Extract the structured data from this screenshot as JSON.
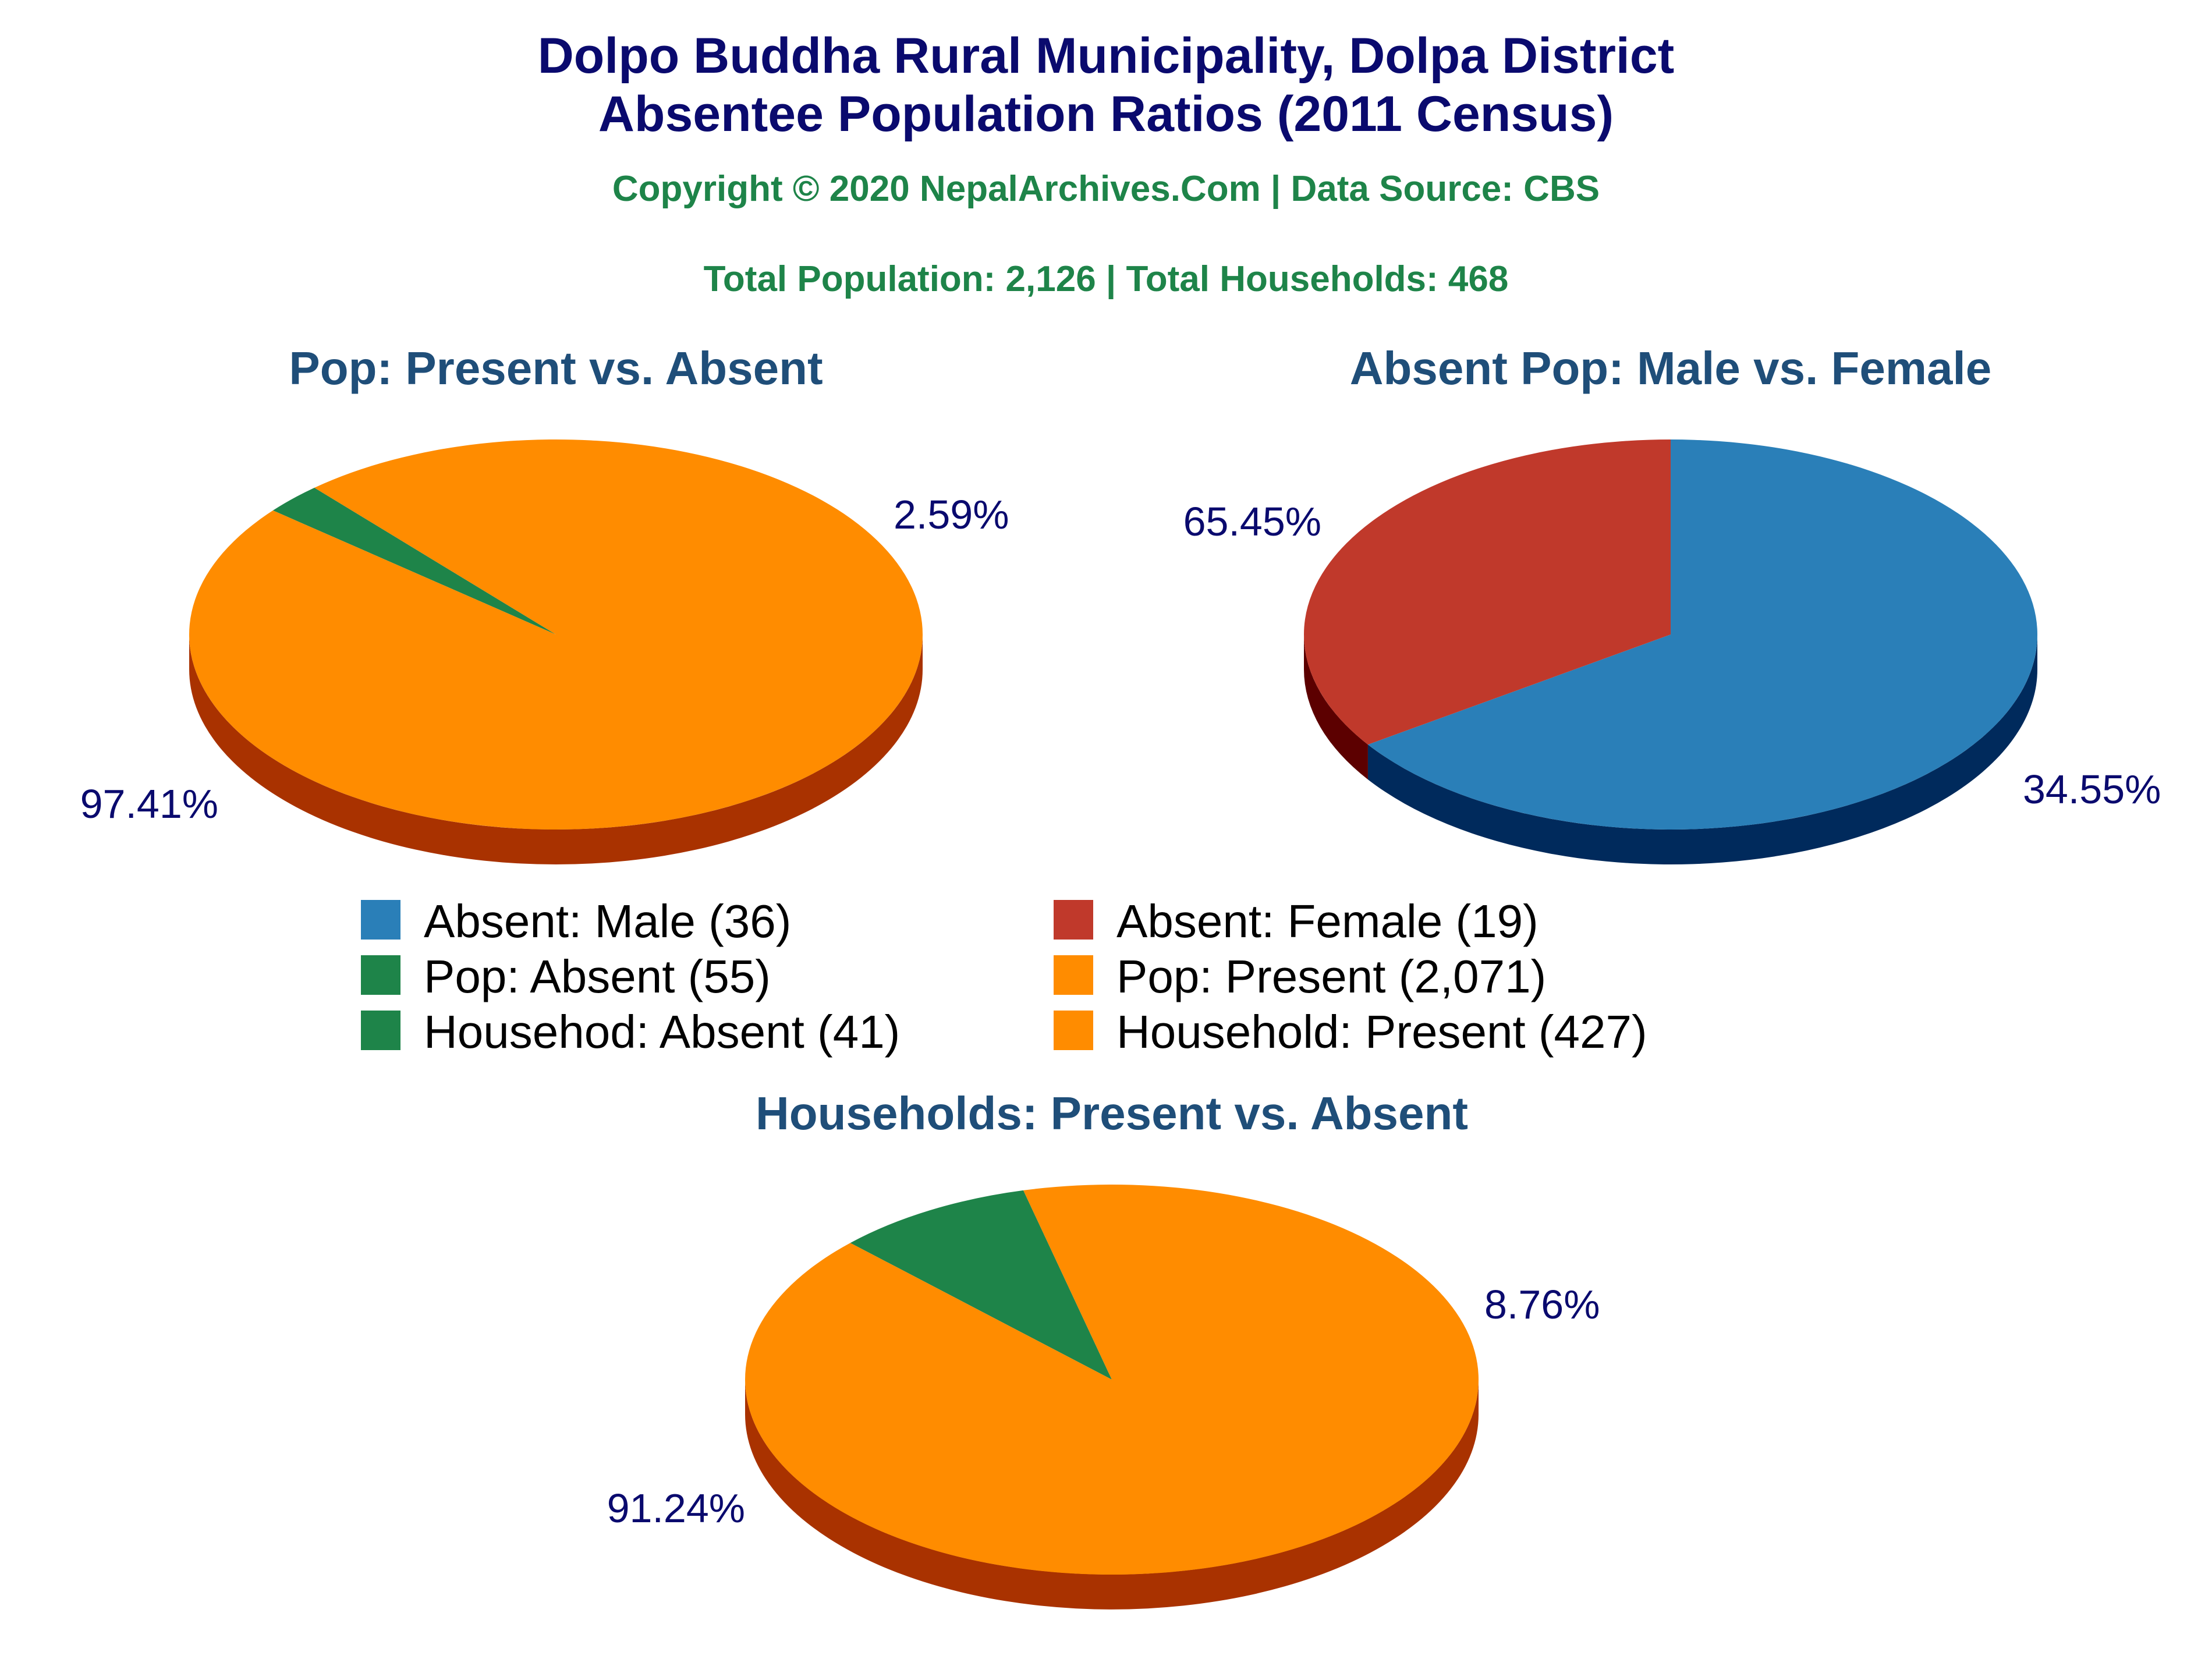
{
  "header": {
    "title_line1": "Dolpo Buddha Rural Municipality, Dolpa District",
    "title_line2": "Absentee Population Ratios (2011 Census)",
    "copyright": "Copyright © 2020 NepalArchives.Com | Data Source: CBS",
    "totals": "Total Population: 2,126 | Total Households: 468"
  },
  "chart_data": [
    {
      "type": "pie",
      "title": "Pop: Present vs. Absent",
      "slices": [
        {
          "label": "Pop: Absent",
          "value": 55,
          "percent_label": "2.59%",
          "color": "#1e8449",
          "side_color": "#145a32"
        },
        {
          "label": "Pop: Present",
          "value": 2071,
          "percent_label": "97.41%",
          "color": "#ff8c00",
          "side_color": "#a93200"
        }
      ]
    },
    {
      "type": "pie",
      "title": "Absent Pop: Male vs. Female",
      "slices": [
        {
          "label": "Absent: Male",
          "value": 36,
          "percent_label": "65.45%",
          "color": "#2a7fb8",
          "side_color": "#002a5c"
        },
        {
          "label": "Absent: Female",
          "value": 19,
          "percent_label": "34.55%",
          "color": "#c0392b",
          "side_color": "#5c0000"
        }
      ]
    },
    {
      "type": "pie",
      "title": "Households: Present vs. Absent",
      "slices": [
        {
          "label": "Househod: Absent",
          "value": 41,
          "percent_label": "8.76%",
          "color": "#1e8449",
          "side_color": "#145a32"
        },
        {
          "label": "Household: Present",
          "value": 427,
          "percent_label": "91.24%",
          "color": "#ff8c00",
          "side_color": "#a93200"
        }
      ]
    }
  ],
  "legend": [
    {
      "text": "Absent: Male (36)",
      "color": "#2a7fb8"
    },
    {
      "text": "Absent: Female (19)",
      "color": "#c0392b"
    },
    {
      "text": "Pop: Absent (55)",
      "color": "#1e8449"
    },
    {
      "text": "Pop: Present (2,071)",
      "color": "#ff8c00"
    },
    {
      "text": "Househod: Absent (41)",
      "color": "#1e8449"
    },
    {
      "text": "Household: Present (427)",
      "color": "#ff8c00"
    }
  ]
}
